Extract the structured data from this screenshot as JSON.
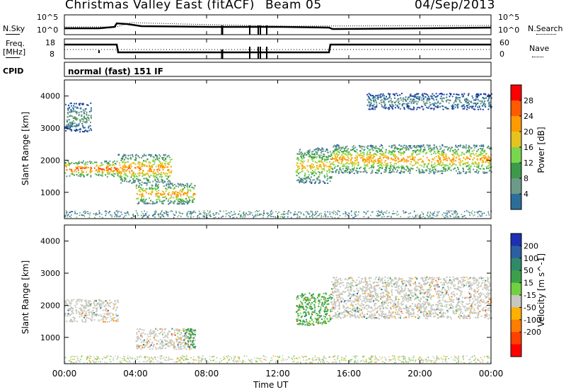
{
  "header": {
    "title": "Christmas Valley East (fitACF)",
    "beam": "Beam 05",
    "date": "04/Sep/2013"
  },
  "panels": {
    "nsky_label": "N.Sky",
    "nsearch_label": "N.Search",
    "freq_label_1": "Freq.",
    "freq_label_2": "[MHz]",
    "nave_label": "Nave",
    "cpid_label": "CPID",
    "cpid_text": "normal (fast) 151 IF",
    "nsky_ticks": [
      "10^5",
      "10^0"
    ],
    "nsearch_ticks": [
      "10^5",
      "10^0"
    ],
    "freq_ticks": [
      "18",
      "8"
    ],
    "nave_ticks": [
      "60",
      "0"
    ]
  },
  "axes": {
    "xlabel": "Time UT",
    "ylabel": "Slant Range [km]",
    "xticks": [
      "00:00",
      "04:00",
      "08:00",
      "12:00",
      "16:00",
      "20:00",
      "00:00"
    ],
    "yticks": [
      "1000",
      "2000",
      "3000",
      "4000"
    ]
  },
  "colorbars": {
    "power_label": "Power [dB]",
    "power_ticks": [
      "28",
      "24",
      "20",
      "16",
      "12",
      "8",
      "4"
    ],
    "power_colors": [
      "#ff0000",
      "#ff5a00",
      "#ff9b00",
      "#e6c31e",
      "#7ad74d",
      "#3c9a4a",
      "#6c9a88",
      "#2c6e9a",
      "#1e3c9e",
      "#1414ff"
    ],
    "velocity_label": "Velocity [m s^-1]",
    "velocity_ticks": [
      "200",
      "100",
      "50",
      "15",
      "-15",
      "-50",
      "-100",
      "-200"
    ],
    "velocity_colors": [
      "#1e2fb4",
      "#2c5fa0",
      "#2f8a6a",
      "#3aa04a",
      "#70d040",
      "#c8c8c0",
      "#ffb000",
      "#ff7d00",
      "#ff4000",
      "#ff0000"
    ]
  },
  "chart_data": [
    {
      "type": "heatmap",
      "title": "Power [dB]",
      "xlabel": "Time UT",
      "ylabel": "Slant Range [km]",
      "xlim": [
        "00:00",
        "24:00"
      ],
      "ylim": [
        180,
        4500
      ],
      "zlim": [
        0,
        30
      ],
      "features": [
        {
          "time": [
            "00:00",
            "03:00"
          ],
          "range_km": [
            1500,
            2000
          ],
          "peak_db": 28
        },
        {
          "time": [
            "03:00",
            "06:00"
          ],
          "range_km": [
            1300,
            2200
          ],
          "peak_db": 26
        },
        {
          "time": [
            "04:00",
            "07:20"
          ],
          "range_km": [
            650,
            1300
          ],
          "peak_db": 24
        },
        {
          "time": [
            "13:00",
            "15:00"
          ],
          "range_km": [
            1300,
            2400
          ],
          "peak_db": 22
        },
        {
          "time": [
            "15:00",
            "24:00"
          ],
          "range_km": [
            1600,
            2500
          ],
          "peak_db": 24
        },
        {
          "time": [
            "00:00",
            "01:30"
          ],
          "range_km": [
            2900,
            3800
          ],
          "peak_db": 12
        },
        {
          "time": [
            "17:00",
            "24:00"
          ],
          "range_km": [
            3600,
            4100
          ],
          "peak_db": 10
        }
      ]
    },
    {
      "type": "heatmap",
      "title": "Velocity [m s^-1]",
      "xlabel": "Time UT",
      "ylabel": "Slant Range [km]",
      "xlim": [
        "00:00",
        "24:00"
      ],
      "ylim": [
        180,
        4500
      ],
      "zlim": [
        -200,
        200
      ],
      "features": [
        {
          "time": [
            "00:00",
            "03:00"
          ],
          "range_km": [
            1500,
            2200
          ],
          "velocity": 0
        },
        {
          "time": [
            "04:00",
            "07:20"
          ],
          "range_km": [
            650,
            1300
          ],
          "velocity": 0
        },
        {
          "time": [
            "06:40",
            "07:20"
          ],
          "range_km": [
            700,
            1300
          ],
          "velocity": 30
        },
        {
          "time": [
            "13:00",
            "15:00"
          ],
          "range_km": [
            1400,
            2400
          ],
          "velocity": 25
        },
        {
          "time": [
            "15:00",
            "24:00"
          ],
          "range_km": [
            1600,
            2900
          ],
          "velocity": 0
        }
      ]
    }
  ]
}
